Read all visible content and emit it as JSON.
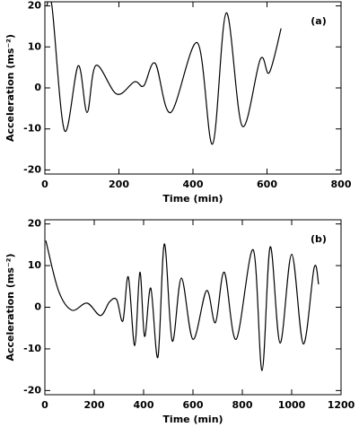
{
  "chart_data": [
    {
      "type": "line",
      "panel_label": "(a)",
      "xlabel": "Time (min)",
      "ylabel": "Acceleration (ms⁻²)",
      "xlim": [
        0,
        800
      ],
      "xticks": [
        0,
        200,
        400,
        600,
        800
      ],
      "ylim": [
        -21,
        21
      ],
      "yticks": [
        -20,
        -10,
        0,
        10,
        20
      ],
      "series": [
        {
          "color": "#000000",
          "x": [
            5,
            19,
            53,
            90,
            114,
            138,
            194,
            242,
            267,
            298,
            340,
            412,
            453,
            490,
            533,
            582,
            606,
            638
          ],
          "values": [
            20,
            20,
            -10.4,
            5.4,
            -6,
            5.5,
            -1.5,
            1.5,
            0.5,
            6,
            -6,
            11,
            -13.7,
            18.3,
            -9.3,
            7,
            3.7,
            14.5
          ]
        }
      ]
    },
    {
      "type": "line",
      "panel_label": "(b)",
      "xlabel": "Time (min)",
      "ylabel": "Acceleration (ms⁻²)",
      "xlim": [
        0,
        1200
      ],
      "xticks": [
        0,
        200,
        400,
        600,
        800,
        1000,
        1200
      ],
      "ylim": [
        -21,
        21
      ],
      "yticks": [
        -20,
        -10,
        0,
        10,
        20
      ],
      "series": [
        {
          "color": "#000000",
          "x": [
            4,
            55,
            109,
            171,
            225,
            262,
            291,
            316,
            338,
            364,
            385,
            404,
            429,
            458,
            484,
            516,
            553,
            600,
            655,
            691,
            727,
            775,
            844,
            880,
            913,
            953,
            1000,
            1047,
            1091,
            1109
          ],
          "values": [
            16,
            4,
            -0.7,
            1,
            -2,
            1.3,
            1.8,
            -3.3,
            7.3,
            -9.2,
            8.4,
            -7,
            4.6,
            -12,
            15.2,
            -8.1,
            7,
            -7.7,
            4,
            -3.7,
            8.4,
            -7.7,
            13.8,
            -15.2,
            14.5,
            -8.6,
            12.7,
            -8.8,
            9.5,
            5.5
          ]
        }
      ]
    }
  ]
}
